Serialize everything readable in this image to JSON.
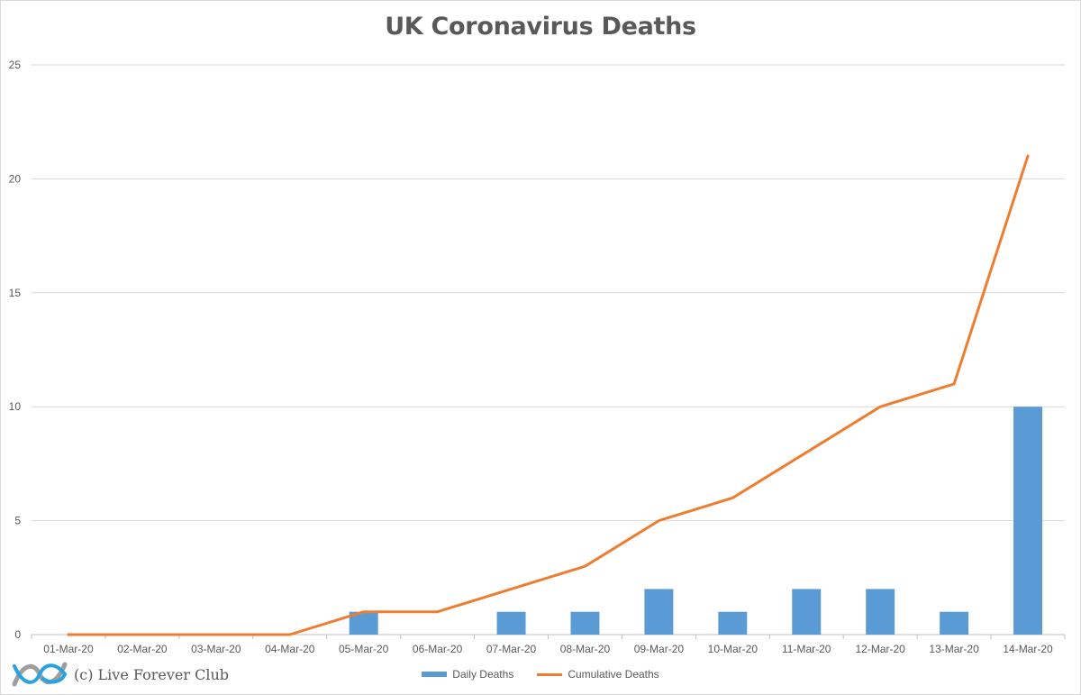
{
  "chart_data": {
    "type": "bar",
    "title": "UK Coronavirus Deaths",
    "xlabel": "",
    "ylabel": "",
    "ylim": [
      0,
      25
    ],
    "yticks": [
      0,
      5,
      10,
      15,
      20,
      25
    ],
    "grid": true,
    "legend_position": "bottom",
    "categories": [
      "01-Mar-20",
      "02-Mar-20",
      "03-Mar-20",
      "04-Mar-20",
      "05-Mar-20",
      "06-Mar-20",
      "07-Mar-20",
      "08-Mar-20",
      "09-Mar-20",
      "10-Mar-20",
      "11-Mar-20",
      "12-Mar-20",
      "13-Mar-20",
      "14-Mar-20"
    ],
    "series": [
      {
        "name": "Daily Deaths",
        "type": "bar",
        "color": "#5b9bd5",
        "values": [
          0,
          0,
          0,
          0,
          1,
          0,
          1,
          1,
          2,
          1,
          2,
          2,
          1,
          10
        ]
      },
      {
        "name": "Cumulative Deaths",
        "type": "line",
        "color": "#ed7d31",
        "values": [
          0,
          0,
          0,
          0,
          1,
          1,
          2,
          3,
          5,
          6,
          8,
          10,
          11,
          21
        ]
      }
    ]
  },
  "watermark": {
    "text": "(c) Live Forever Club",
    "icon": "infinity-logo-icon"
  }
}
